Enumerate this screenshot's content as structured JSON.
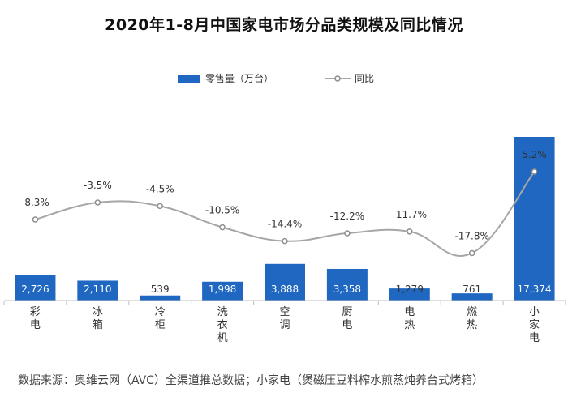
{
  "chart_data": {
    "type": "bar",
    "title": "2020年1-8月中国家电市场分品类规模及同比情况",
    "categories": [
      "彩电",
      "冰箱",
      "冷柜",
      "洗衣机",
      "空调",
      "厨电",
      "电热",
      "燃热",
      "小家电"
    ],
    "series": [
      {
        "name": "零售量（万台）",
        "kind": "bar",
        "color": "#1f67c0",
        "values": [
          2726,
          2110,
          539,
          1998,
          3888,
          3358,
          1279,
          761,
          17374
        ],
        "labels": [
          "2,726",
          "2,110",
          "539",
          "1,998",
          "3,888",
          "3,358",
          "1,279",
          "761",
          "17,374"
        ]
      },
      {
        "name": "同比",
        "kind": "line",
        "color": "#a6a6a6",
        "values": [
          -8.3,
          -3.5,
          -4.5,
          -10.5,
          -14.4,
          -12.2,
          -11.7,
          -17.8,
          5.2
        ],
        "labels": [
          "-8.3%",
          "-3.5%",
          "-4.5%",
          "-10.5%",
          "-14.4%",
          "-12.2%",
          "-11.7%",
          "-17.8%",
          "5.2%"
        ]
      }
    ],
    "legend_position": "top-center",
    "grid": false,
    "source": "数据来源：奥维云网（AVC）全渠道推总数据；小家电（煲磁压豆料榨水煎蒸炖养台式烤箱）"
  }
}
